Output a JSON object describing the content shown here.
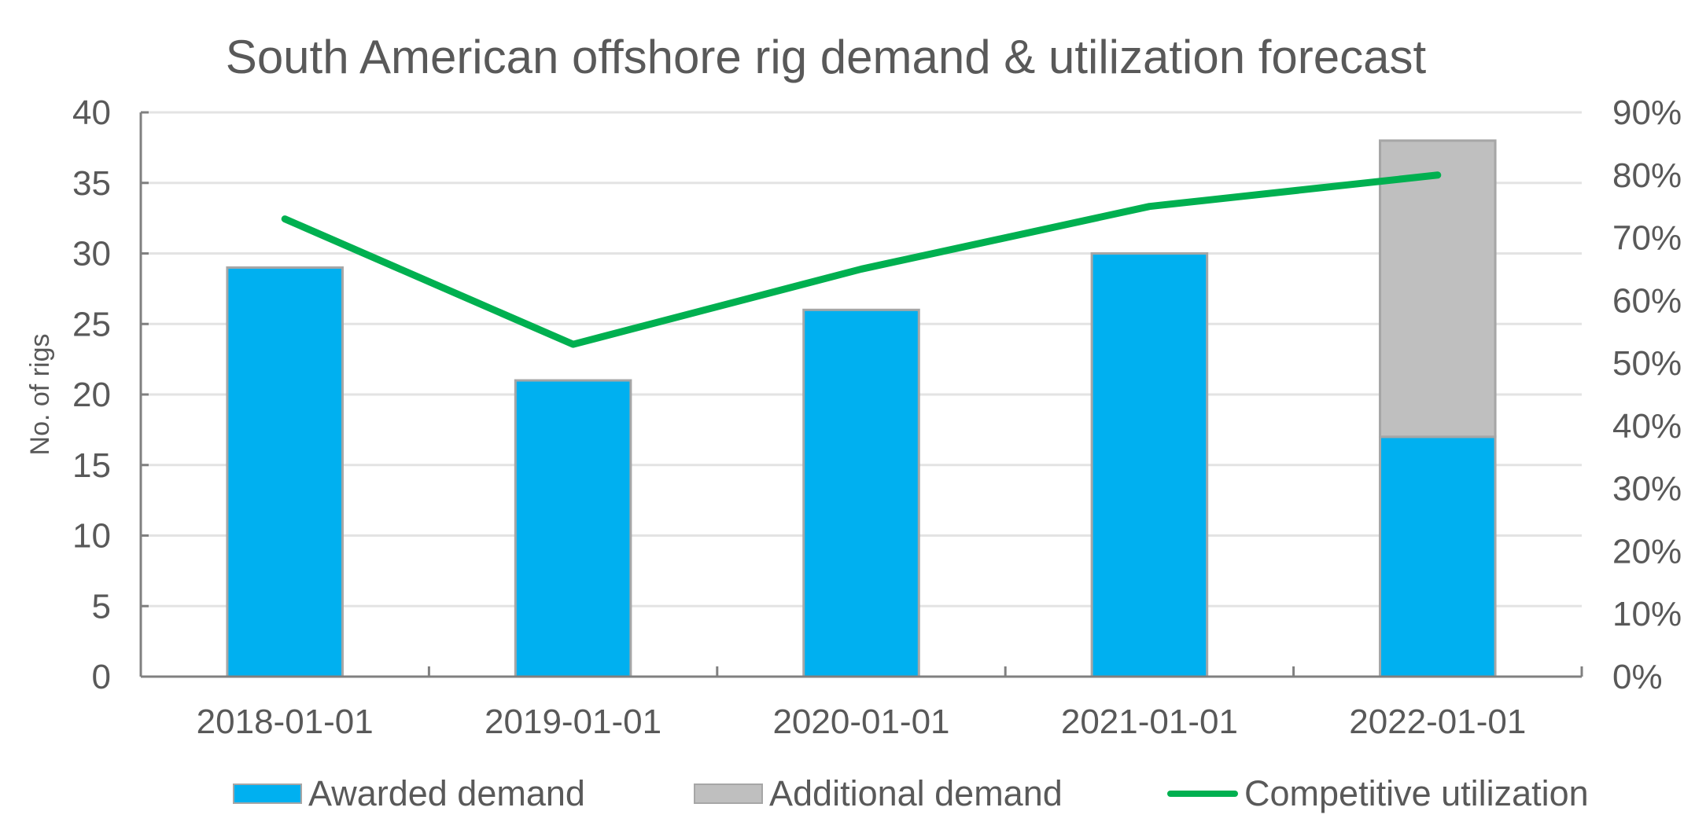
{
  "chart_data": {
    "type": "bar",
    "title": "South American offshore rig demand & utilization forecast",
    "xlabel": "",
    "ylabel": "No. of rigs",
    "y2label": "",
    "categories": [
      "2018-01-01",
      "2019-01-01",
      "2020-01-01",
      "2021-01-01",
      "2022-01-01"
    ],
    "ylim": [
      0,
      40
    ],
    "yticks": [
      0,
      5,
      10,
      15,
      20,
      25,
      30,
      35,
      40
    ],
    "y2lim": [
      0,
      90
    ],
    "y2ticks": [
      "0%",
      "10%",
      "20%",
      "30%",
      "40%",
      "50%",
      "60%",
      "70%",
      "80%",
      "90%"
    ],
    "grid": true,
    "legend_position": "bottom",
    "series": [
      {
        "name": "Awarded demand",
        "kind": "bar",
        "stacked": true,
        "axis": "left",
        "color": "#00b0f0",
        "values": [
          29,
          21,
          26,
          30,
          17
        ]
      },
      {
        "name": "Additional demand",
        "kind": "bar",
        "stacked": true,
        "axis": "left",
        "color": "#bfbfbf",
        "values": [
          0,
          0,
          0,
          0,
          21
        ]
      },
      {
        "name": "Competitive utilization",
        "kind": "line",
        "axis": "right",
        "unit": "%",
        "color": "#00b050",
        "values": [
          73,
          53,
          65,
          75,
          80
        ]
      }
    ]
  }
}
